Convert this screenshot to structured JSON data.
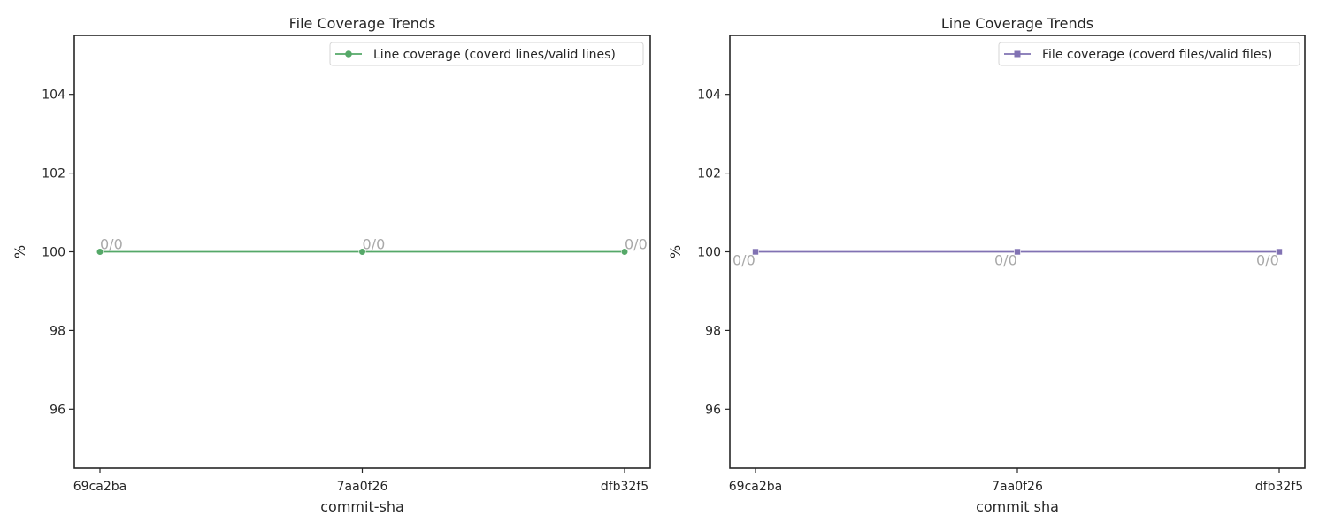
{
  "chart_data": [
    {
      "type": "line",
      "title": "File Coverage Trends",
      "xlabel": "commit-sha",
      "ylabel": "%",
      "categories": [
        "69ca2ba",
        "7aa0f26",
        "dfb32f5"
      ],
      "ylim": [
        94.5,
        105.5
      ],
      "yticks": [
        96,
        98,
        100,
        102,
        104
      ],
      "grid": false,
      "legend_position": "upper right",
      "series": [
        {
          "name": "Line coverage (coverd lines/valid lines)",
          "values": [
            100,
            100,
            100
          ],
          "labels": [
            "0/0",
            "0/0",
            "0/0"
          ],
          "color": "#55a868",
          "marker": "circle",
          "label_placement": "above"
        }
      ]
    },
    {
      "type": "line",
      "title": "Line Coverage Trends",
      "xlabel": "commit sha",
      "ylabel": "%",
      "categories": [
        "69ca2ba",
        "7aa0f26",
        "dfb32f5"
      ],
      "ylim": [
        94.5,
        105.5
      ],
      "yticks": [
        96,
        98,
        100,
        102,
        104
      ],
      "grid": false,
      "legend_position": "upper right",
      "series": [
        {
          "name": "File coverage (coverd files/valid files)",
          "values": [
            100,
            100,
            100
          ],
          "labels": [
            "0/0",
            "0/0",
            "0/0"
          ],
          "color": "#8172b3",
          "marker": "square",
          "label_placement": "below"
        }
      ]
    }
  ]
}
